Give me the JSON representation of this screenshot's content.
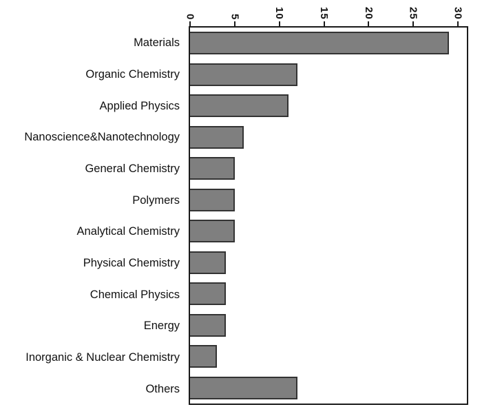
{
  "chart_data": {
    "type": "bar",
    "orientation": "horizontal",
    "title": "",
    "xlabel": "",
    "ylabel": "",
    "categories": [
      "Materials",
      "Organic Chemistry",
      "Applied Physics",
      "Nanoscience&Nanotechnology",
      "General Chemistry",
      "Polymers",
      "Analytical Chemistry",
      "Physical Chemistry",
      "Chemical Physics",
      "Energy",
      "Inorganic & Nuclear Chemistry",
      "Others"
    ],
    "values": [
      29,
      12,
      11,
      6,
      5,
      5,
      5,
      4,
      4,
      4,
      3,
      12
    ],
    "xticks": [
      0,
      5,
      10,
      15,
      20,
      25,
      30
    ],
    "xlim": [
      0,
      31
    ],
    "x_axis_position": "top",
    "tick_label_rotation": "90deg reading top-to-bottom",
    "grid": false,
    "legend": "none",
    "colors": {
      "bar_fill": "#7f7f7f",
      "bar_border": "#333333",
      "axis_color": "#1a1a1a",
      "background": "#ffffff",
      "text": "#111111"
    }
  }
}
